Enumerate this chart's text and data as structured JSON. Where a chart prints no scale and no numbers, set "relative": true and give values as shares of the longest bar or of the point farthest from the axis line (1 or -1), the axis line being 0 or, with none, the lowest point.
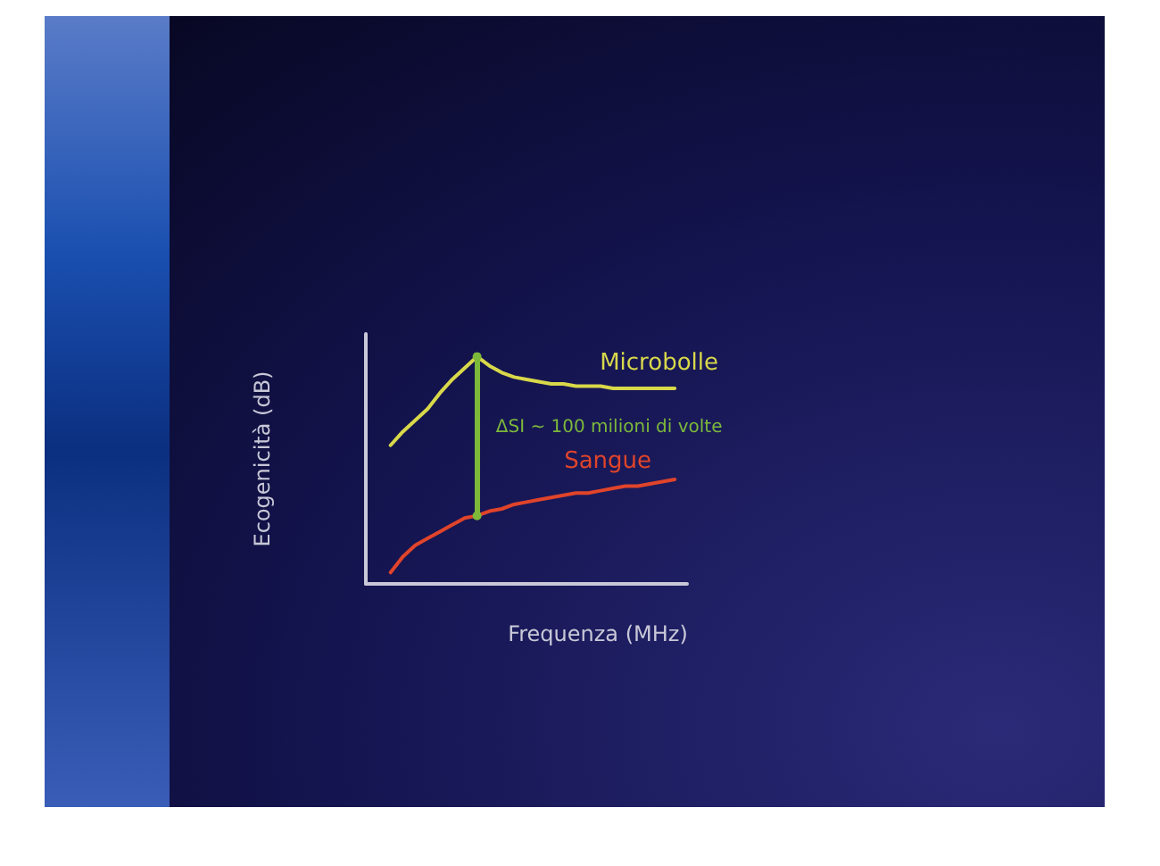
{
  "chart_data": {
    "type": "line",
    "relative": true,
    "xlabel": "Frequenza (MHz)",
    "ylabel": "Ecogenicità (dB)",
    "categories": [
      null,
      null,
      null,
      null,
      null,
      null,
      null,
      null,
      null,
      null,
      null,
      null,
      null,
      null,
      null,
      null,
      null,
      null,
      null,
      null,
      null,
      null,
      null,
      null,
      null,
      null,
      null
    ],
    "series": [
      {
        "name": "Microbolle",
        "color": "#d8d84a",
        "values": [
          null,
          null,
          0.61,
          0.67,
          0.72,
          0.77,
          0.84,
          0.9,
          0.95,
          1.0,
          0.96,
          0.93,
          0.91,
          0.9,
          0.89,
          0.88,
          0.88,
          0.87,
          0.87,
          0.87,
          0.86,
          0.86,
          0.86,
          0.86,
          0.86,
          0.86,
          null
        ]
      },
      {
        "name": "Sangue",
        "color": "#e0442a",
        "values": [
          null,
          null,
          0.05,
          0.12,
          0.17,
          0.2,
          0.23,
          0.26,
          0.29,
          0.3,
          0.32,
          0.33,
          0.35,
          0.36,
          0.37,
          0.38,
          0.39,
          0.4,
          0.4,
          0.41,
          0.42,
          0.43,
          0.43,
          0.44,
          0.45,
          0.46,
          null
        ]
      }
    ],
    "annotations": [
      "ΔSI ~ 100 milioni di volte"
    ],
    "legend": false,
    "grid": false,
    "marker": "none",
    "line_style": "solid"
  }
}
